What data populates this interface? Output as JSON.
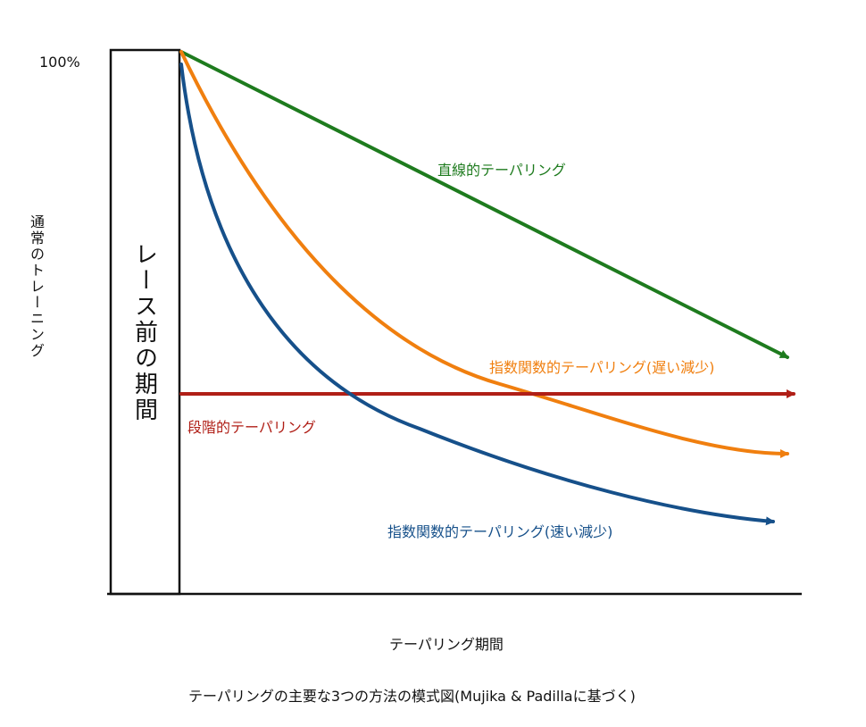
{
  "labels": {
    "y_tick_top": "100%",
    "y_axis": "通常のトレーニング",
    "pre_race_box": "レース前の期間",
    "x_axis": "テーパリング期間",
    "caption": "テーパリングの主要な3つの方法の模式図(Mujika & Padillaに基づく)"
  },
  "curves": {
    "linear": {
      "label": "直線的テーパリング",
      "color": "#1e7b1e"
    },
    "exp_slow": {
      "label": "指数関数的テーパリング(遅い減少)",
      "color": "#f07f0f"
    },
    "step": {
      "label": "段階的テーパリング",
      "color": "#b01f17"
    },
    "exp_fast": {
      "label": "指数関数的テーパリング(速い減少)",
      "color": "#16508a"
    }
  }
}
